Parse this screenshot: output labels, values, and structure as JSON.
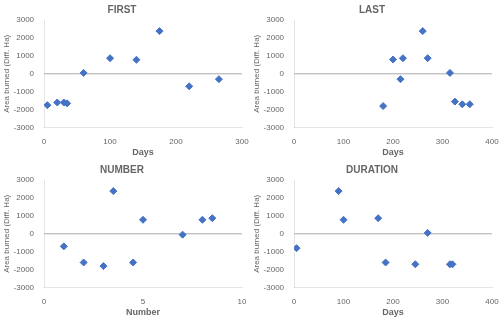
{
  "chart_data": [
    {
      "type": "scatter",
      "title": "FIRST",
      "xlabel": "Days",
      "ylabel": "Area burned (Diff. Ha)",
      "xlim": [
        0,
        300
      ],
      "ylim": [
        -3000,
        3000
      ],
      "xticks": [
        0,
        100,
        200,
        300
      ],
      "yticks": [
        -3000,
        -2000,
        -1000,
        0,
        1000,
        2000,
        3000
      ],
      "x": [
        5,
        20,
        30,
        35,
        60,
        100,
        140,
        175,
        220,
        265
      ],
      "values": [
        -1750,
        -1600,
        -1600,
        -1650,
        50,
        870,
        780,
        2380,
        -700,
        -300
      ],
      "color": "#4472C4",
      "marker": "diamond",
      "grid": false
    },
    {
      "type": "scatter",
      "title": "LAST",
      "xlabel": "Days",
      "ylabel": "Area burned (Diff. Ha)",
      "xlim": [
        0,
        400
      ],
      "ylim": [
        -3000,
        3000
      ],
      "xticks": [
        0,
        100,
        200,
        300,
        400
      ],
      "yticks": [
        -3000,
        -2000,
        -1000,
        0,
        1000,
        2000,
        3000
      ],
      "x": [
        180,
        200,
        215,
        220,
        260,
        270,
        315,
        325,
        340,
        355
      ],
      "values": [
        -1800,
        800,
        -300,
        870,
        2380,
        870,
        50,
        -1550,
        -1700,
        -1700
      ],
      "color": "#4472C4",
      "marker": "diamond",
      "grid": false
    },
    {
      "type": "scatter",
      "title": "NUMBER",
      "xlabel": "Number",
      "ylabel": "Area burned (Diff. Ha)",
      "xlim": [
        0,
        10
      ],
      "ylim": [
        -3000,
        3000
      ],
      "xticks": [
        0,
        5,
        10
      ],
      "yticks": [
        -3000,
        -2000,
        -1000,
        0,
        1000,
        2000,
        3000
      ],
      "x": [
        1,
        2,
        3,
        3.5,
        4.5,
        5,
        7,
        8,
        8.5
      ],
      "values": [
        -700,
        -1600,
        -1800,
        2380,
        -1600,
        780,
        -50,
        780,
        870
      ],
      "color": "#4472C4",
      "marker": "diamond",
      "grid": false
    },
    {
      "type": "scatter",
      "title": "DURATION",
      "xlabel": "Days",
      "ylabel": "Area burned (Diff. Ha)",
      "xlim": [
        0,
        400
      ],
      "ylim": [
        -3000,
        3000
      ],
      "xticks": [
        0,
        100,
        200,
        300,
        400
      ],
      "yticks": [
        -3000,
        -2000,
        -1000,
        0,
        1000,
        2000,
        3000
      ],
      "x": [
        5,
        90,
        100,
        170,
        185,
        245,
        270,
        315,
        320
      ],
      "values": [
        -800,
        2380,
        780,
        870,
        -1600,
        -1700,
        50,
        -1700,
        -1700
      ],
      "color": "#4472C4",
      "marker": "diamond",
      "grid": false
    }
  ]
}
